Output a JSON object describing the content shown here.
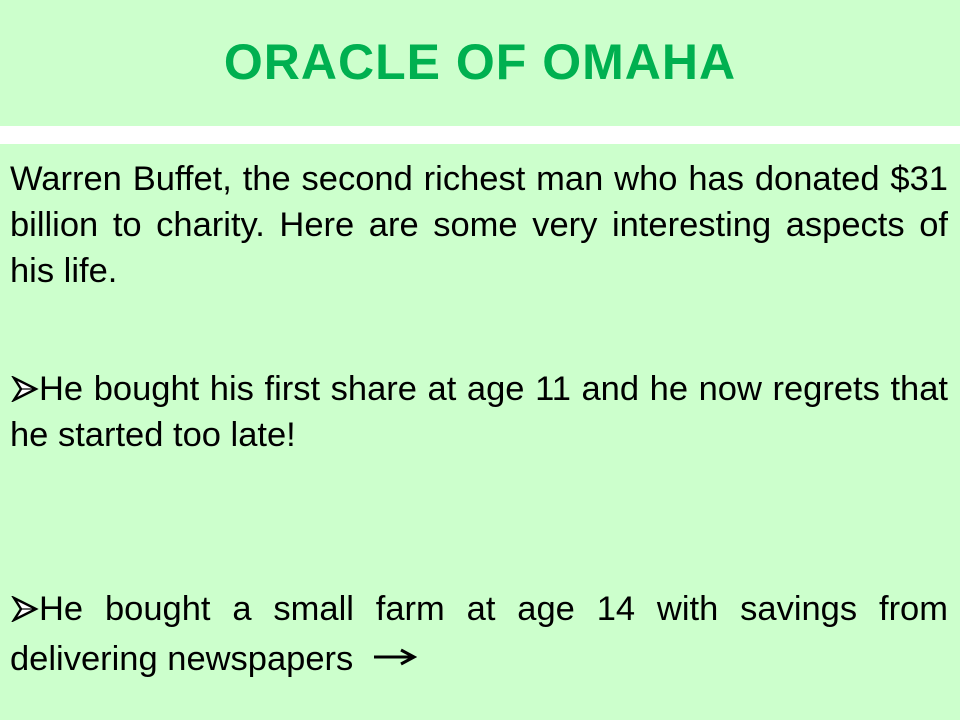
{
  "slide": {
    "title": "ORACLE OF OMAHA",
    "intro": "Warren Buffet, the second richest man who has donated $31 billion to charity. Here are some very interesting aspects of his life.",
    "bullets": [
      {
        "icon": "arrow-bullet-icon",
        "text": "He bought his first share at age 11 and he now regrets that he started too late!"
      },
      {
        "icon": "arrow-bullet-icon",
        "text": "He bought a small farm at age 14 with savings from delivering newspapers"
      }
    ],
    "trailing_icon": "right-arrow-icon"
  },
  "colors": {
    "background": "#ccffcc",
    "title": "#00b050",
    "text": "#000000",
    "separator": "#ffffff"
  }
}
